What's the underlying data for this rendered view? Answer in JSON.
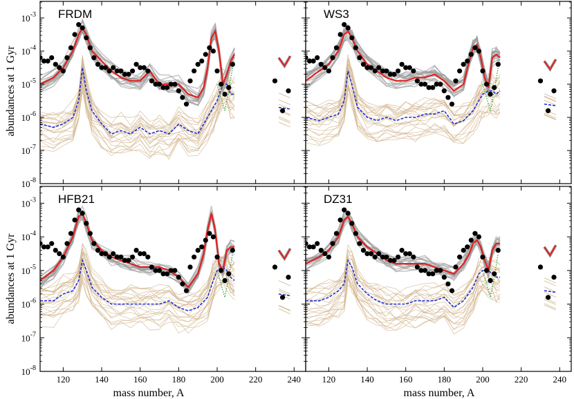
{
  "figure": {
    "ylabel": "abundances at 1 Gyr",
    "xlabel": "mass number, A",
    "x_ticks": [
      120,
      140,
      160,
      180,
      200,
      220,
      240
    ],
    "y_ticks": [
      "10",
      "10",
      "10",
      "10",
      "10",
      "10"
    ],
    "y_tick_exps": [
      "-3",
      "-4",
      "-5",
      "-6",
      "-7",
      "-8"
    ],
    "colors": {
      "simulation_mean": "#e02020",
      "simulation_bands": "#999999",
      "low_trajectories": "#d2b48c",
      "low_mean": "#1f2fd0",
      "observed": "#000000",
      "green_dotted": "#2a9a2a"
    }
  },
  "chart_data": [
    {
      "type": "line",
      "panel": "FRDM",
      "xlim": [
        108,
        246
      ],
      "ylim_log10": [
        -8,
        -2.5
      ],
      "y_scale": "log",
      "series": [
        {
          "style": "red-solid",
          "x": [
            108,
            115,
            120,
            125,
            128,
            130,
            132,
            135,
            140,
            145,
            150,
            155,
            160,
            165,
            170,
            175,
            180,
            185,
            190,
            193,
            195,
            197,
            199,
            201,
            203,
            205,
            207,
            209
          ],
          "log10_y": [
            -5.0,
            -4.8,
            -4.5,
            -4.0,
            -3.5,
            -3.3,
            -3.5,
            -4.0,
            -4.3,
            -4.6,
            -4.8,
            -4.9,
            -4.9,
            -4.6,
            -5.0,
            -5.0,
            -5.0,
            -5.3,
            -5.4,
            -5.1,
            -4.5,
            -3.6,
            -3.4,
            -4.0,
            -5.0,
            -4.7,
            -4.3,
            -4.1
          ]
        },
        {
          "style": "blue-dashed",
          "x": [
            108,
            115,
            120,
            125,
            128,
            130,
            132,
            135,
            140,
            145,
            150,
            155,
            160,
            165,
            170,
            175,
            180,
            185,
            190,
            195,
            198,
            200,
            203,
            205,
            207,
            209
          ],
          "log10_y": [
            -6.2,
            -6.3,
            -6.2,
            -6.0,
            -5.5,
            -4.5,
            -5.2,
            -5.8,
            -6.2,
            -6.5,
            -6.4,
            -6.5,
            -6.3,
            -6.5,
            -6.4,
            -6.5,
            -6.2,
            -6.4,
            -6.5,
            -6.0,
            -5.7,
            -5.5,
            -5.0,
            -5.0,
            -5.3,
            -5.3
          ]
        },
        {
          "style": "observed-points",
          "x": [
            108,
            110,
            112,
            114,
            116,
            118,
            120,
            122,
            124,
            126,
            128,
            130,
            132,
            134,
            136,
            138,
            140,
            142,
            144,
            146,
            148,
            150,
            152,
            154,
            156,
            158,
            160,
            162,
            164,
            166,
            168,
            170,
            172,
            174,
            176,
            178,
            180,
            182,
            184,
            186,
            188,
            190,
            192,
            194,
            196,
            198,
            200,
            202,
            204,
            206,
            208,
            230,
            234,
            237
          ],
          "log10_y": [
            -4.2,
            -4.3,
            -4.3,
            -4.2,
            -4.4,
            -4.5,
            -4.6,
            -4.2,
            -3.9,
            -3.5,
            -3.2,
            -3.3,
            -3.6,
            -3.9,
            -4.2,
            -4.4,
            -4.5,
            -4.5,
            -4.6,
            -4.5,
            -4.6,
            -4.6,
            -4.7,
            -4.7,
            -4.6,
            -4.4,
            -4.5,
            -4.5,
            -4.6,
            -4.9,
            -5.0,
            -5.0,
            -5.1,
            -5.1,
            -5.0,
            -5.0,
            -5.2,
            -5.4,
            -5.6,
            -4.9,
            -4.6,
            -4.4,
            -4.3,
            -4.1,
            -3.9,
            -4.0,
            -4.6,
            -5.0,
            -5.3,
            -5.1,
            -4.4,
            -4.9,
            -5.8,
            -5.2
          ]
        }
      ]
    },
    {
      "type": "line",
      "panel": "WS3",
      "xlim": [
        108,
        246
      ],
      "ylim_log10": [
        -8,
        -2.5
      ],
      "y_scale": "log",
      "series": [
        {
          "style": "red-solid",
          "x": [
            108,
            115,
            120,
            125,
            128,
            130,
            132,
            135,
            140,
            145,
            150,
            155,
            160,
            165,
            170,
            175,
            180,
            185,
            190,
            193,
            195,
            197,
            199,
            201,
            203,
            205,
            207,
            209
          ],
          "log10_y": [
            -4.9,
            -4.6,
            -4.4,
            -4.0,
            -3.5,
            -3.4,
            -3.6,
            -4.0,
            -4.4,
            -4.6,
            -4.8,
            -4.9,
            -4.9,
            -4.8,
            -4.8,
            -4.7,
            -4.9,
            -5.2,
            -5.0,
            -4.3,
            -3.9,
            -3.8,
            -4.2,
            -4.8,
            -5.1,
            -4.2,
            -4.1,
            -4.2
          ]
        },
        {
          "style": "blue-dashed",
          "x": [
            108,
            115,
            120,
            125,
            128,
            130,
            132,
            135,
            140,
            145,
            150,
            155,
            160,
            165,
            170,
            175,
            180,
            185,
            190,
            195,
            198,
            200,
            203,
            205,
            207,
            209
          ],
          "log10_y": [
            -6.0,
            -6.1,
            -6.0,
            -5.9,
            -5.5,
            -4.6,
            -5.0,
            -5.7,
            -6.0,
            -6.1,
            -6.0,
            -6.1,
            -6.0,
            -6.0,
            -5.9,
            -5.9,
            -5.8,
            -6.2,
            -6.1,
            -5.8,
            -5.5,
            -5.3,
            -5.2,
            -5.2,
            -5.3,
            -5.2
          ]
        },
        {
          "style": "observed-points",
          "x": [
            108,
            110,
            112,
            114,
            116,
            118,
            120,
            122,
            124,
            126,
            128,
            130,
            132,
            134,
            136,
            138,
            140,
            142,
            144,
            146,
            148,
            150,
            152,
            154,
            156,
            158,
            160,
            162,
            164,
            166,
            168,
            170,
            172,
            174,
            176,
            178,
            180,
            182,
            184,
            186,
            188,
            190,
            192,
            194,
            196,
            198,
            200,
            202,
            204,
            206,
            208,
            230,
            234,
            237
          ],
          "log10_y": [
            -4.2,
            -4.3,
            -4.3,
            -4.2,
            -4.4,
            -4.5,
            -4.6,
            -4.2,
            -3.9,
            -3.5,
            -3.2,
            -3.3,
            -3.6,
            -3.9,
            -4.2,
            -4.4,
            -4.5,
            -4.5,
            -4.6,
            -4.5,
            -4.6,
            -4.6,
            -4.7,
            -4.7,
            -4.6,
            -4.4,
            -4.5,
            -4.5,
            -4.6,
            -4.9,
            -5.0,
            -5.0,
            -5.1,
            -5.1,
            -5.0,
            -5.0,
            -5.2,
            -5.4,
            -5.6,
            -4.9,
            -4.6,
            -4.4,
            -4.3,
            -4.1,
            -3.9,
            -4.0,
            -4.6,
            -5.0,
            -5.3,
            -5.1,
            -4.4,
            -4.9,
            -5.8,
            -5.2
          ]
        }
      ]
    },
    {
      "type": "line",
      "panel": "HFB21",
      "xlim": [
        108,
        246
      ],
      "ylim_log10": [
        -8,
        -2.5
      ],
      "y_scale": "log",
      "series": [
        {
          "style": "red-solid",
          "x": [
            108,
            115,
            120,
            125,
            128,
            130,
            132,
            135,
            140,
            145,
            150,
            155,
            160,
            165,
            170,
            175,
            180,
            185,
            190,
            193,
            195,
            197,
            199,
            201,
            203,
            205,
            207,
            209
          ],
          "log10_y": [
            -5.3,
            -5.0,
            -4.6,
            -4.0,
            -3.4,
            -3.3,
            -3.6,
            -4.1,
            -4.4,
            -4.6,
            -4.7,
            -4.8,
            -4.9,
            -4.9,
            -4.9,
            -5.0,
            -5.2,
            -5.5,
            -5.1,
            -4.5,
            -3.8,
            -3.3,
            -3.8,
            -4.8,
            -5.0,
            -4.4,
            -4.3,
            -4.3
          ]
        },
        {
          "style": "blue-dashed",
          "x": [
            108,
            115,
            120,
            125,
            128,
            130,
            132,
            135,
            140,
            145,
            150,
            155,
            160,
            165,
            170,
            175,
            180,
            185,
            190,
            195,
            198,
            200,
            203,
            205,
            207,
            209
          ],
          "log10_y": [
            -5.9,
            -5.9,
            -5.7,
            -5.6,
            -5.3,
            -4.7,
            -5.0,
            -5.5,
            -5.8,
            -6.0,
            -6.0,
            -6.0,
            -6.0,
            -6.0,
            -6.0,
            -5.9,
            -6.1,
            -6.2,
            -6.1,
            -5.8,
            -5.3,
            -5.0,
            -4.9,
            -5.0,
            -5.2,
            -5.3
          ]
        },
        {
          "style": "observed-points",
          "x": [
            108,
            110,
            112,
            114,
            116,
            118,
            120,
            122,
            124,
            126,
            128,
            130,
            132,
            134,
            136,
            138,
            140,
            142,
            144,
            146,
            148,
            150,
            152,
            154,
            156,
            158,
            160,
            162,
            164,
            166,
            168,
            170,
            172,
            174,
            176,
            178,
            180,
            182,
            184,
            186,
            188,
            190,
            192,
            194,
            196,
            198,
            200,
            202,
            204,
            206,
            208,
            230,
            234,
            237
          ],
          "log10_y": [
            -4.2,
            -4.3,
            -4.3,
            -4.2,
            -4.4,
            -4.5,
            -4.6,
            -4.2,
            -3.9,
            -3.5,
            -3.2,
            -3.3,
            -3.6,
            -3.9,
            -4.2,
            -4.4,
            -4.5,
            -4.5,
            -4.6,
            -4.5,
            -4.6,
            -4.6,
            -4.7,
            -4.7,
            -4.6,
            -4.4,
            -4.5,
            -4.5,
            -4.6,
            -4.9,
            -5.0,
            -5.0,
            -5.1,
            -5.1,
            -5.0,
            -5.0,
            -5.2,
            -5.4,
            -5.6,
            -4.9,
            -4.6,
            -4.4,
            -4.3,
            -4.1,
            -3.9,
            -4.0,
            -4.6,
            -5.0,
            -5.3,
            -5.1,
            -4.4,
            -4.9,
            -5.8,
            -5.2
          ]
        }
      ]
    },
    {
      "type": "line",
      "panel": "DZ31",
      "xlim": [
        108,
        246
      ],
      "ylim_log10": [
        -8,
        -2.5
      ],
      "y_scale": "log",
      "series": [
        {
          "style": "red-solid",
          "x": [
            108,
            115,
            120,
            125,
            128,
            130,
            132,
            135,
            140,
            145,
            150,
            155,
            160,
            165,
            170,
            175,
            180,
            185,
            190,
            193,
            195,
            197,
            199,
            201,
            203,
            205,
            207,
            209
          ],
          "log10_y": [
            -4.8,
            -4.6,
            -4.4,
            -4.0,
            -3.5,
            -3.4,
            -3.6,
            -4.0,
            -4.3,
            -4.5,
            -4.7,
            -4.8,
            -4.8,
            -4.8,
            -4.8,
            -4.9,
            -5.0,
            -5.1,
            -4.8,
            -4.5,
            -4.2,
            -4.1,
            -4.3,
            -4.7,
            -5.0,
            -4.4,
            -4.2,
            -4.2
          ]
        },
        {
          "style": "blue-dashed",
          "x": [
            108,
            115,
            120,
            125,
            128,
            130,
            132,
            135,
            140,
            145,
            150,
            155,
            160,
            165,
            170,
            175,
            180,
            185,
            190,
            195,
            198,
            200,
            203,
            205,
            207,
            209
          ],
          "log10_y": [
            -5.9,
            -5.9,
            -5.8,
            -5.6,
            -5.4,
            -4.7,
            -4.9,
            -5.4,
            -5.7,
            -5.9,
            -6.0,
            -6.0,
            -6.0,
            -5.9,
            -5.9,
            -5.9,
            -5.8,
            -6.1,
            -5.9,
            -5.5,
            -5.1,
            -5.0,
            -5.0,
            -5.1,
            -5.2,
            -5.2
          ]
        },
        {
          "style": "observed-points",
          "x": [
            108,
            110,
            112,
            114,
            116,
            118,
            120,
            122,
            124,
            126,
            128,
            130,
            132,
            134,
            136,
            138,
            140,
            142,
            144,
            146,
            148,
            150,
            152,
            154,
            156,
            158,
            160,
            162,
            164,
            166,
            168,
            170,
            172,
            174,
            176,
            178,
            180,
            182,
            184,
            186,
            188,
            190,
            192,
            194,
            196,
            198,
            200,
            202,
            204,
            206,
            208,
            230,
            234,
            237
          ],
          "log10_y": [
            -4.2,
            -4.3,
            -4.3,
            -4.2,
            -4.4,
            -4.5,
            -4.6,
            -4.2,
            -3.9,
            -3.5,
            -3.2,
            -3.3,
            -3.6,
            -3.9,
            -4.2,
            -4.4,
            -4.5,
            -4.5,
            -4.6,
            -4.5,
            -4.6,
            -4.6,
            -4.7,
            -4.7,
            -4.6,
            -4.4,
            -4.5,
            -4.5,
            -4.6,
            -4.9,
            -5.0,
            -5.0,
            -5.1,
            -5.1,
            -5.0,
            -5.0,
            -5.2,
            -5.4,
            -5.6,
            -4.9,
            -4.6,
            -4.4,
            -4.3,
            -4.1,
            -3.9,
            -4.0,
            -4.6,
            -5.0,
            -5.3,
            -5.1,
            -4.4,
            -4.9,
            -5.8,
            -5.2
          ]
        }
      ]
    }
  ]
}
